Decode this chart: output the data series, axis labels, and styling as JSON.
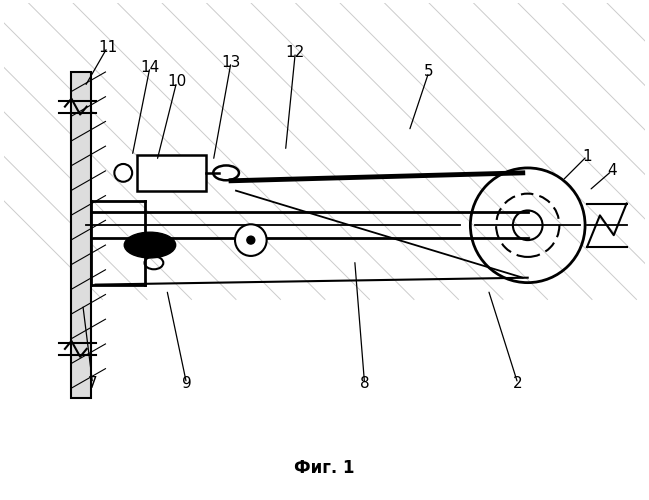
{
  "bg_color": "#ffffff",
  "line_color": "#000000",
  "title": "Фиг. 1",
  "title_fontsize": 12,
  "label_fontsize": 11
}
